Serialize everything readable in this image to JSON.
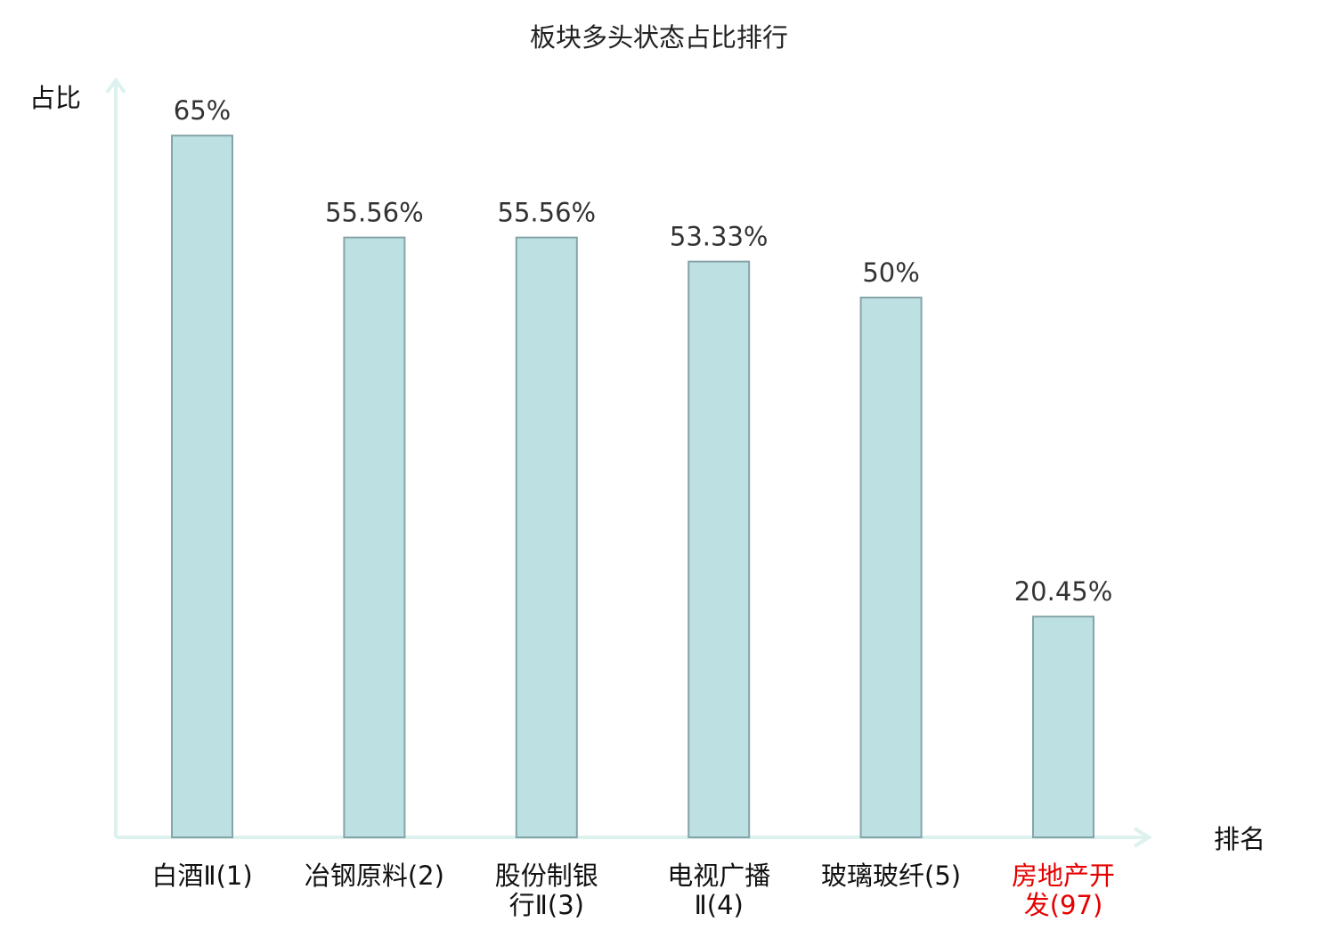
{
  "chart_data": {
    "type": "bar",
    "title": "板块多头状态占比排行",
    "ylabel": "占比",
    "xlabel": "排名",
    "ylim": [
      0,
      70
    ],
    "grid": false,
    "categories": [
      [
        "白酒Ⅱ(1)"
      ],
      [
        "冶钢原料(2)"
      ],
      [
        "股份制银",
        "行Ⅱ(3)"
      ],
      [
        "电视广播",
        "Ⅱ(4)"
      ],
      [
        "玻璃玻纤(5)"
      ],
      [
        "房地产开",
        "发(97)"
      ]
    ],
    "values": [
      65,
      55.56,
      55.56,
      53.33,
      50,
      20.45
    ],
    "value_labels": [
      "65%",
      "55.56%",
      "55.56%",
      "53.33%",
      "50%",
      "20.45%"
    ],
    "highlight_index": 5
  },
  "colors": {
    "bar_fill": "#bde0e3",
    "bar_stroke": "#86a4a8",
    "axis": "#ddf1ee",
    "highlight_text": "#e60000",
    "normal_text": "#111111",
    "value_text": "#333333"
  }
}
